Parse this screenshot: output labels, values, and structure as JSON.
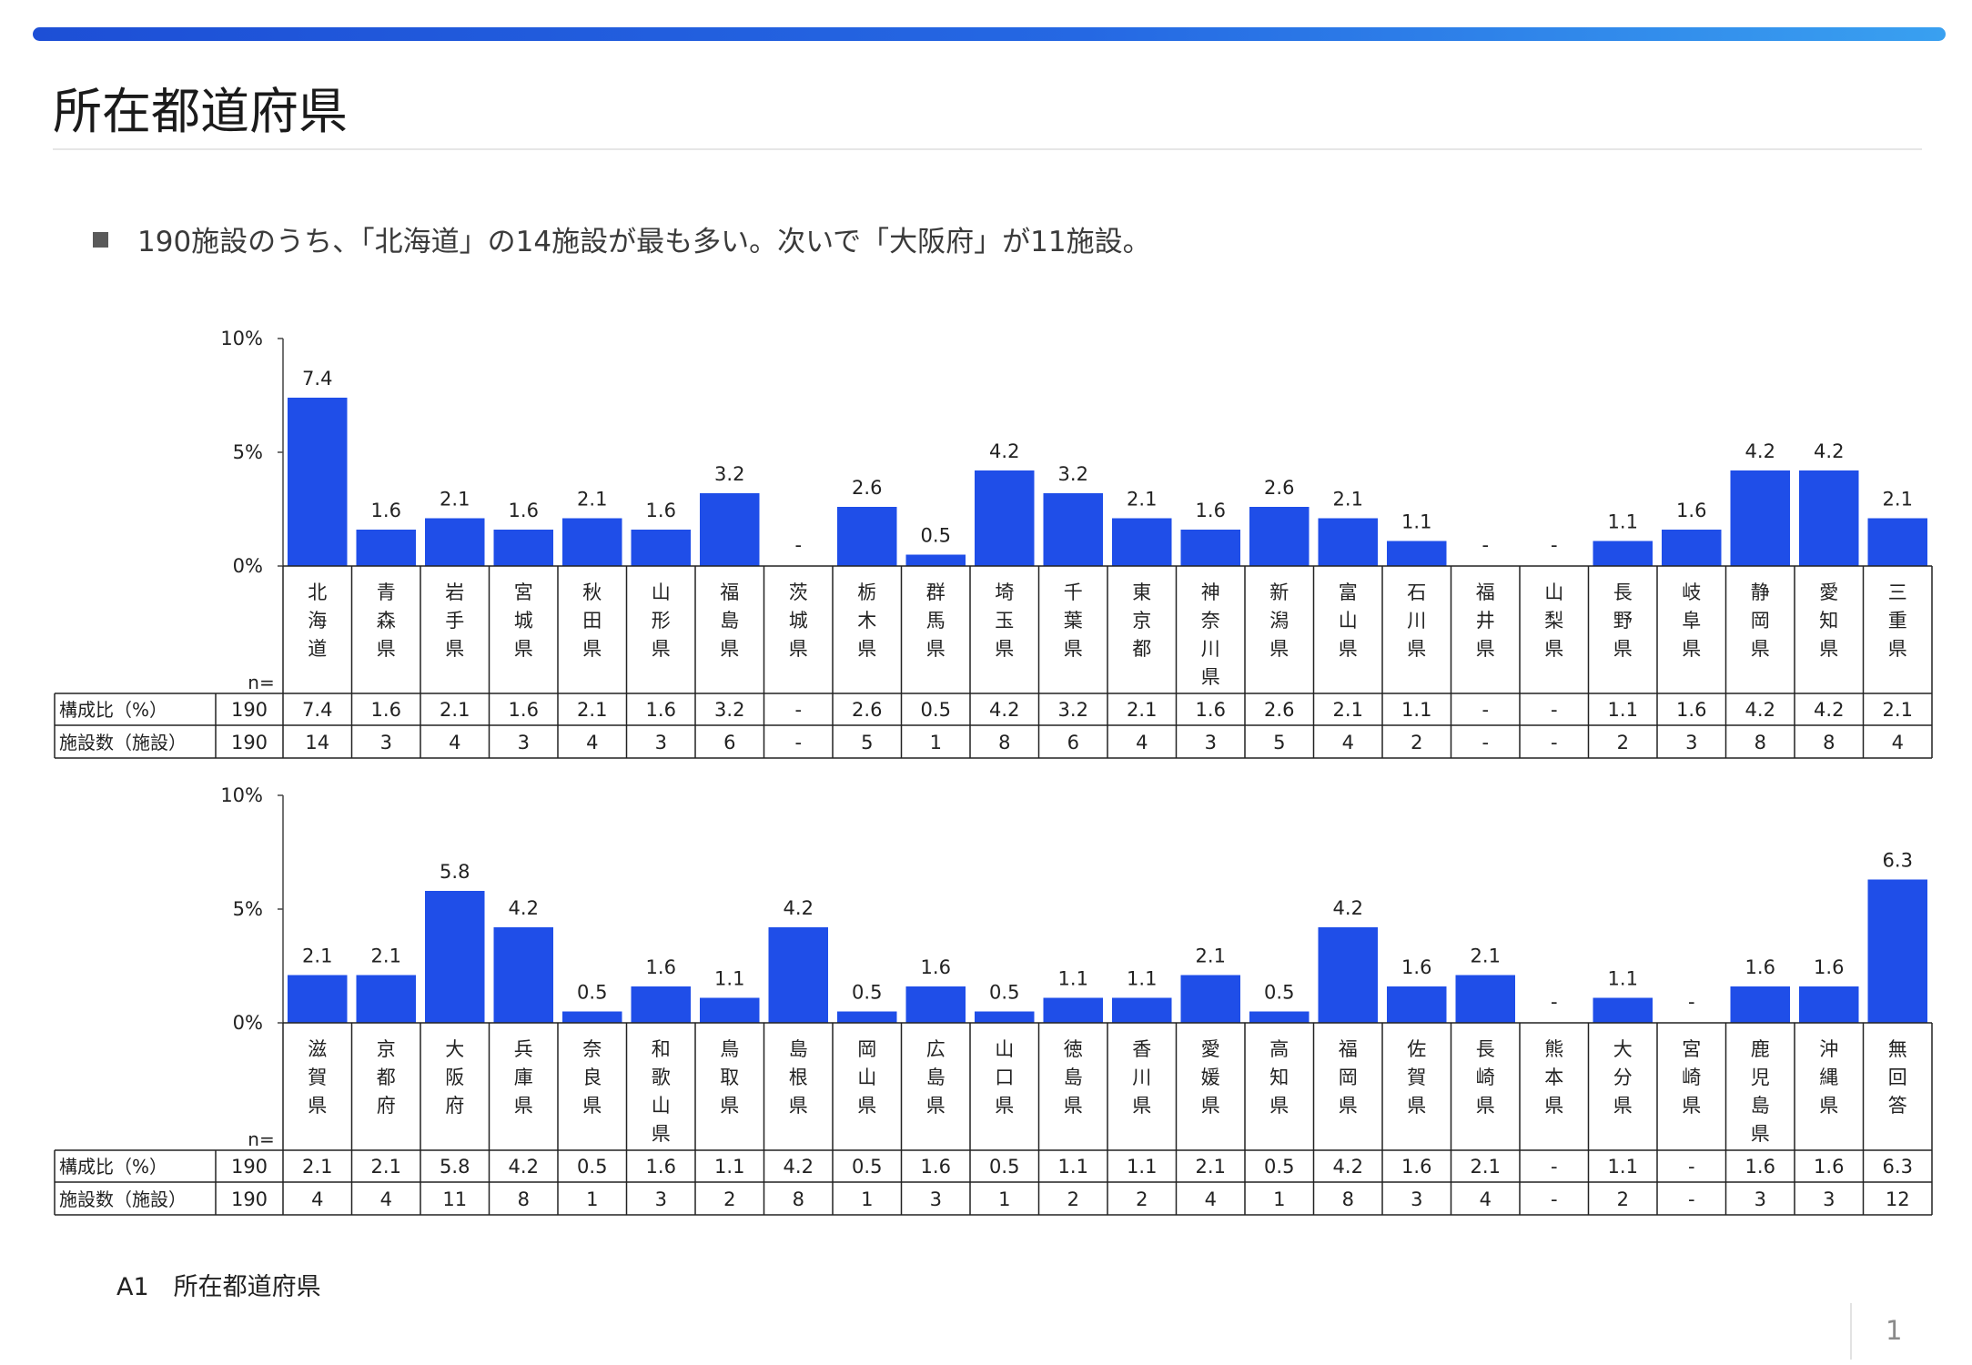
{
  "header": {
    "title": "所在都道府県",
    "summary": "190施設のうち、「北海道」の14施設が最も多い。次いで「大阪府」が11施設。"
  },
  "footer": {
    "caption": "A1　所在都道府県",
    "page_number": "1"
  },
  "colors": {
    "bar": "#1f4ee8",
    "accent_bar_start": "#1d4fd6",
    "accent_bar_end": "#39a0f0"
  },
  "chart_data": [
    {
      "type": "bar",
      "ylim": [
        0,
        10
      ],
      "yticks": [
        "0%",
        "5%",
        "10%"
      ],
      "n_label": "n=",
      "row_labels": [
        "構成比（%）",
        "施設数（施設）"
      ],
      "total": {
        "pct": "190",
        "count": "190"
      },
      "categories": [
        "北海道",
        "青森県",
        "岩手県",
        "宮城県",
        "秋田県",
        "山形県",
        "福島県",
        "茨城県",
        "栃木県",
        "群馬県",
        "埼玉県",
        "千葉県",
        "東京都",
        "神奈川県",
        "新潟県",
        "富山県",
        "石川県",
        "福井県",
        "山梨県",
        "長野県",
        "岐阜県",
        "静岡県",
        "愛知県",
        "三重県"
      ],
      "values": [
        7.4,
        1.6,
        2.1,
        1.6,
        2.1,
        1.6,
        3.2,
        null,
        2.6,
        0.5,
        4.2,
        3.2,
        2.1,
        1.6,
        2.6,
        2.1,
        1.1,
        null,
        null,
        1.1,
        1.6,
        4.2,
        4.2,
        2.1
      ],
      "pct_labels": [
        "7.4",
        "1.6",
        "2.1",
        "1.6",
        "2.1",
        "1.6",
        "3.2",
        "-",
        "2.6",
        "0.5",
        "4.2",
        "3.2",
        "2.1",
        "1.6",
        "2.6",
        "2.1",
        "1.1",
        "-",
        "-",
        "1.1",
        "1.6",
        "4.2",
        "4.2",
        "2.1"
      ],
      "counts": [
        "14",
        "3",
        "4",
        "3",
        "4",
        "3",
        "6",
        "-",
        "5",
        "1",
        "8",
        "6",
        "4",
        "3",
        "5",
        "4",
        "2",
        "-",
        "-",
        "2",
        "3",
        "8",
        "8",
        "4"
      ]
    },
    {
      "type": "bar",
      "ylim": [
        0,
        10
      ],
      "yticks": [
        "0%",
        "5%",
        "10%"
      ],
      "n_label": "n=",
      "row_labels": [
        "構成比（%）",
        "施設数（施設）"
      ],
      "total": {
        "pct": "190",
        "count": "190"
      },
      "categories": [
        "滋賀県",
        "京都府",
        "大阪府",
        "兵庫県",
        "奈良県",
        "和歌山県",
        "鳥取県",
        "島根県",
        "岡山県",
        "広島県",
        "山口県",
        "徳島県",
        "香川県",
        "愛媛県",
        "高知県",
        "福岡県",
        "佐賀県",
        "長崎県",
        "熊本県",
        "大分県",
        "宮崎県",
        "鹿児島県",
        "沖縄県",
        "無回答"
      ],
      "values": [
        2.1,
        2.1,
        5.8,
        4.2,
        0.5,
        1.6,
        1.1,
        4.2,
        0.5,
        1.6,
        0.5,
        1.1,
        1.1,
        2.1,
        0.5,
        4.2,
        1.6,
        2.1,
        null,
        1.1,
        null,
        1.6,
        1.6,
        6.3
      ],
      "pct_labels": [
        "2.1",
        "2.1",
        "5.8",
        "4.2",
        "0.5",
        "1.6",
        "1.1",
        "4.2",
        "0.5",
        "1.6",
        "0.5",
        "1.1",
        "1.1",
        "2.1",
        "0.5",
        "4.2",
        "1.6",
        "2.1",
        "-",
        "1.1",
        "-",
        "1.6",
        "1.6",
        "6.3"
      ],
      "counts": [
        "4",
        "4",
        "11",
        "8",
        "1",
        "3",
        "2",
        "8",
        "1",
        "3",
        "1",
        "2",
        "2",
        "4",
        "1",
        "8",
        "3",
        "4",
        "-",
        "2",
        "-",
        "3",
        "3",
        "12"
      ]
    }
  ]
}
